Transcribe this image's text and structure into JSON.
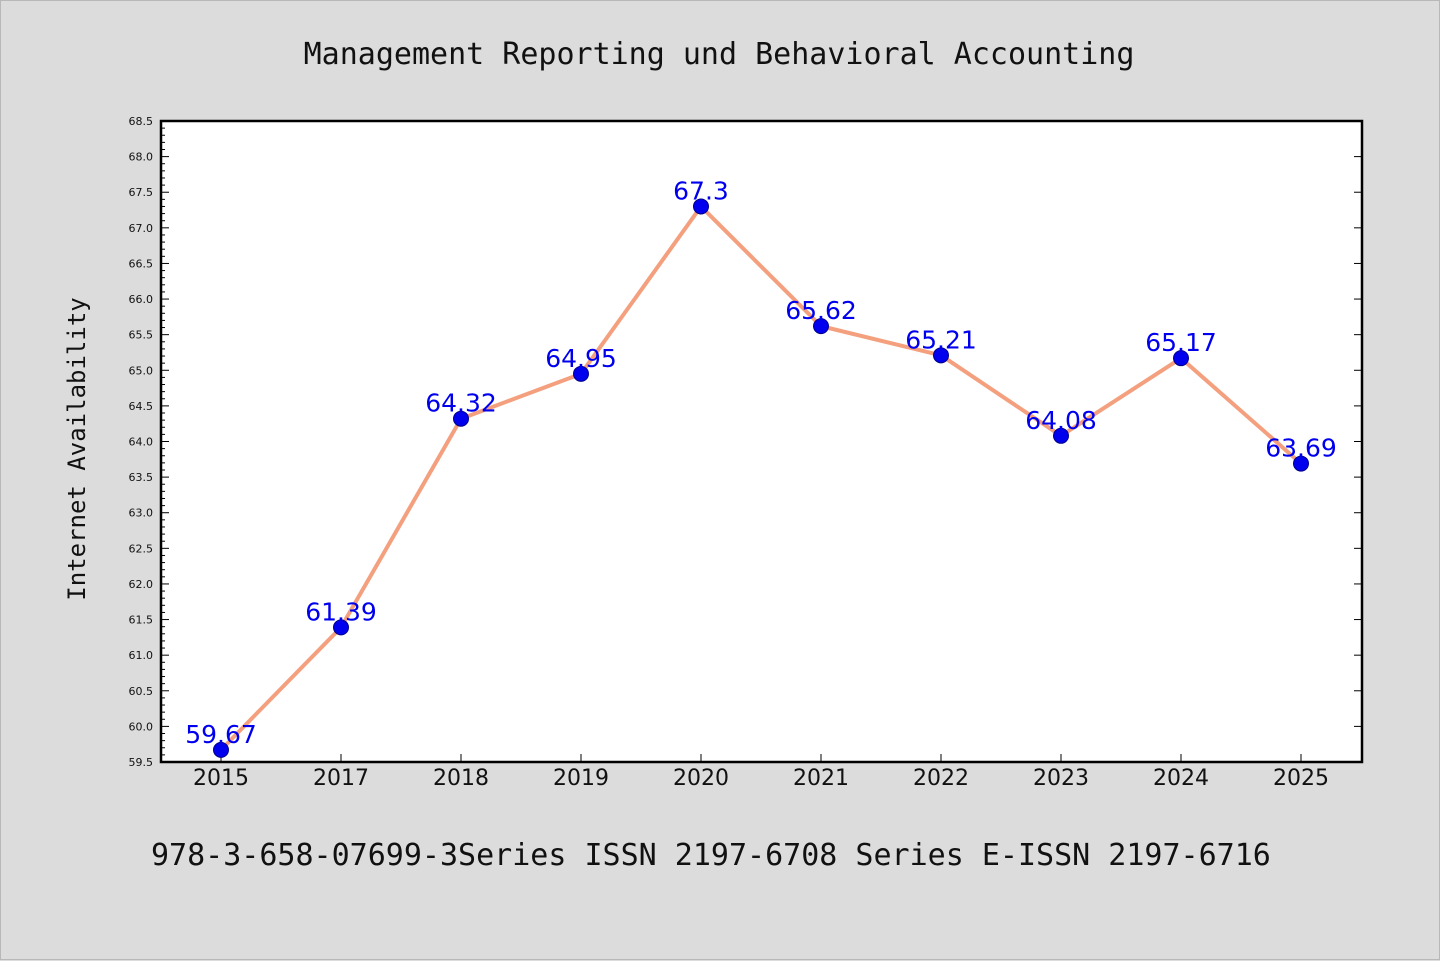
{
  "chart_data": {
    "type": "line",
    "title": "Management Reporting und Behavioral Accounting",
    "xlabel": "",
    "ylabel": "Internet Availability",
    "categories": [
      "2015",
      "2017",
      "2018",
      "2019",
      "2020",
      "2021",
      "2022",
      "2023",
      "2024",
      "2025"
    ],
    "series": [
      {
        "values": [
          59.67,
          61.39,
          64.32,
          64.95,
          67.3,
          65.62,
          65.21,
          64.08,
          65.17,
          63.69
        ],
        "labels": [
          "59.67",
          "61.39",
          "64.32",
          "64.95",
          "67.3",
          "65.62",
          "65.21",
          "64.08",
          "65.17",
          "63.69"
        ],
        "line_color": "#f4a07e",
        "marker_color": "#0000ee"
      }
    ],
    "ylim": [
      59.5,
      68.5
    ],
    "yticks": [
      "59.5",
      "60.0",
      "60.5",
      "61.0",
      "61.5",
      "62.0",
      "62.5",
      "63.0",
      "63.5",
      "64.0",
      "64.5",
      "65.0",
      "65.5",
      "66.0",
      "66.5",
      "67.0",
      "67.5",
      "68.0",
      "68.5"
    ],
    "grid": false,
    "label_color": "#0000ee"
  },
  "footer": "978-3-658-07699-3Series ISSN 2197-6708 Series E-ISSN 2197-6716"
}
